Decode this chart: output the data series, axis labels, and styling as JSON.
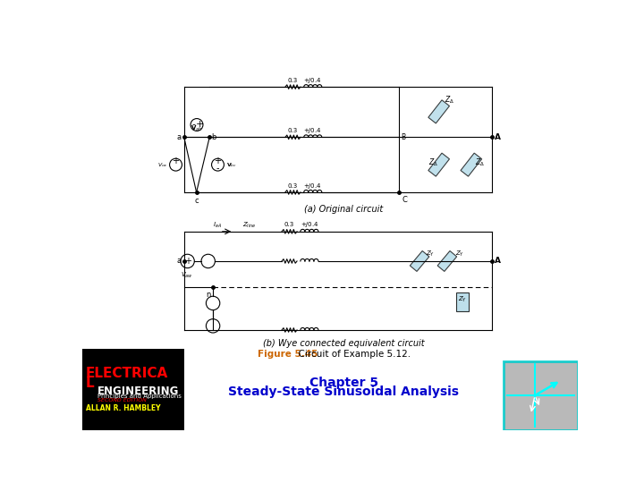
{
  "bg_color": "#ffffff",
  "title_line1": "Chapter 5",
  "title_line2": "Steady-State Sinusoidal Analysis",
  "title_color": "#0000cc",
  "caption_bold": "Figure 5.45",
  "caption_bold_color": "#cc6600",
  "caption_rest": "  Circuit of Example 5.12.",
  "caption_color": "#000000",
  "subcap_a": "(a) Original circuit",
  "subcap_b": "(b) Wye connected equivalent circuit",
  "elec_color": "#ff0000",
  "eng_color": "#ffffff",
  "prin_color": "#ffffff",
  "second_color": "#ff0000",
  "author_color": "#ffff00",
  "phasor_border": "#00cccc",
  "phasor_cyan": "#00ffff",
  "box_gray": "#b0b0b0"
}
